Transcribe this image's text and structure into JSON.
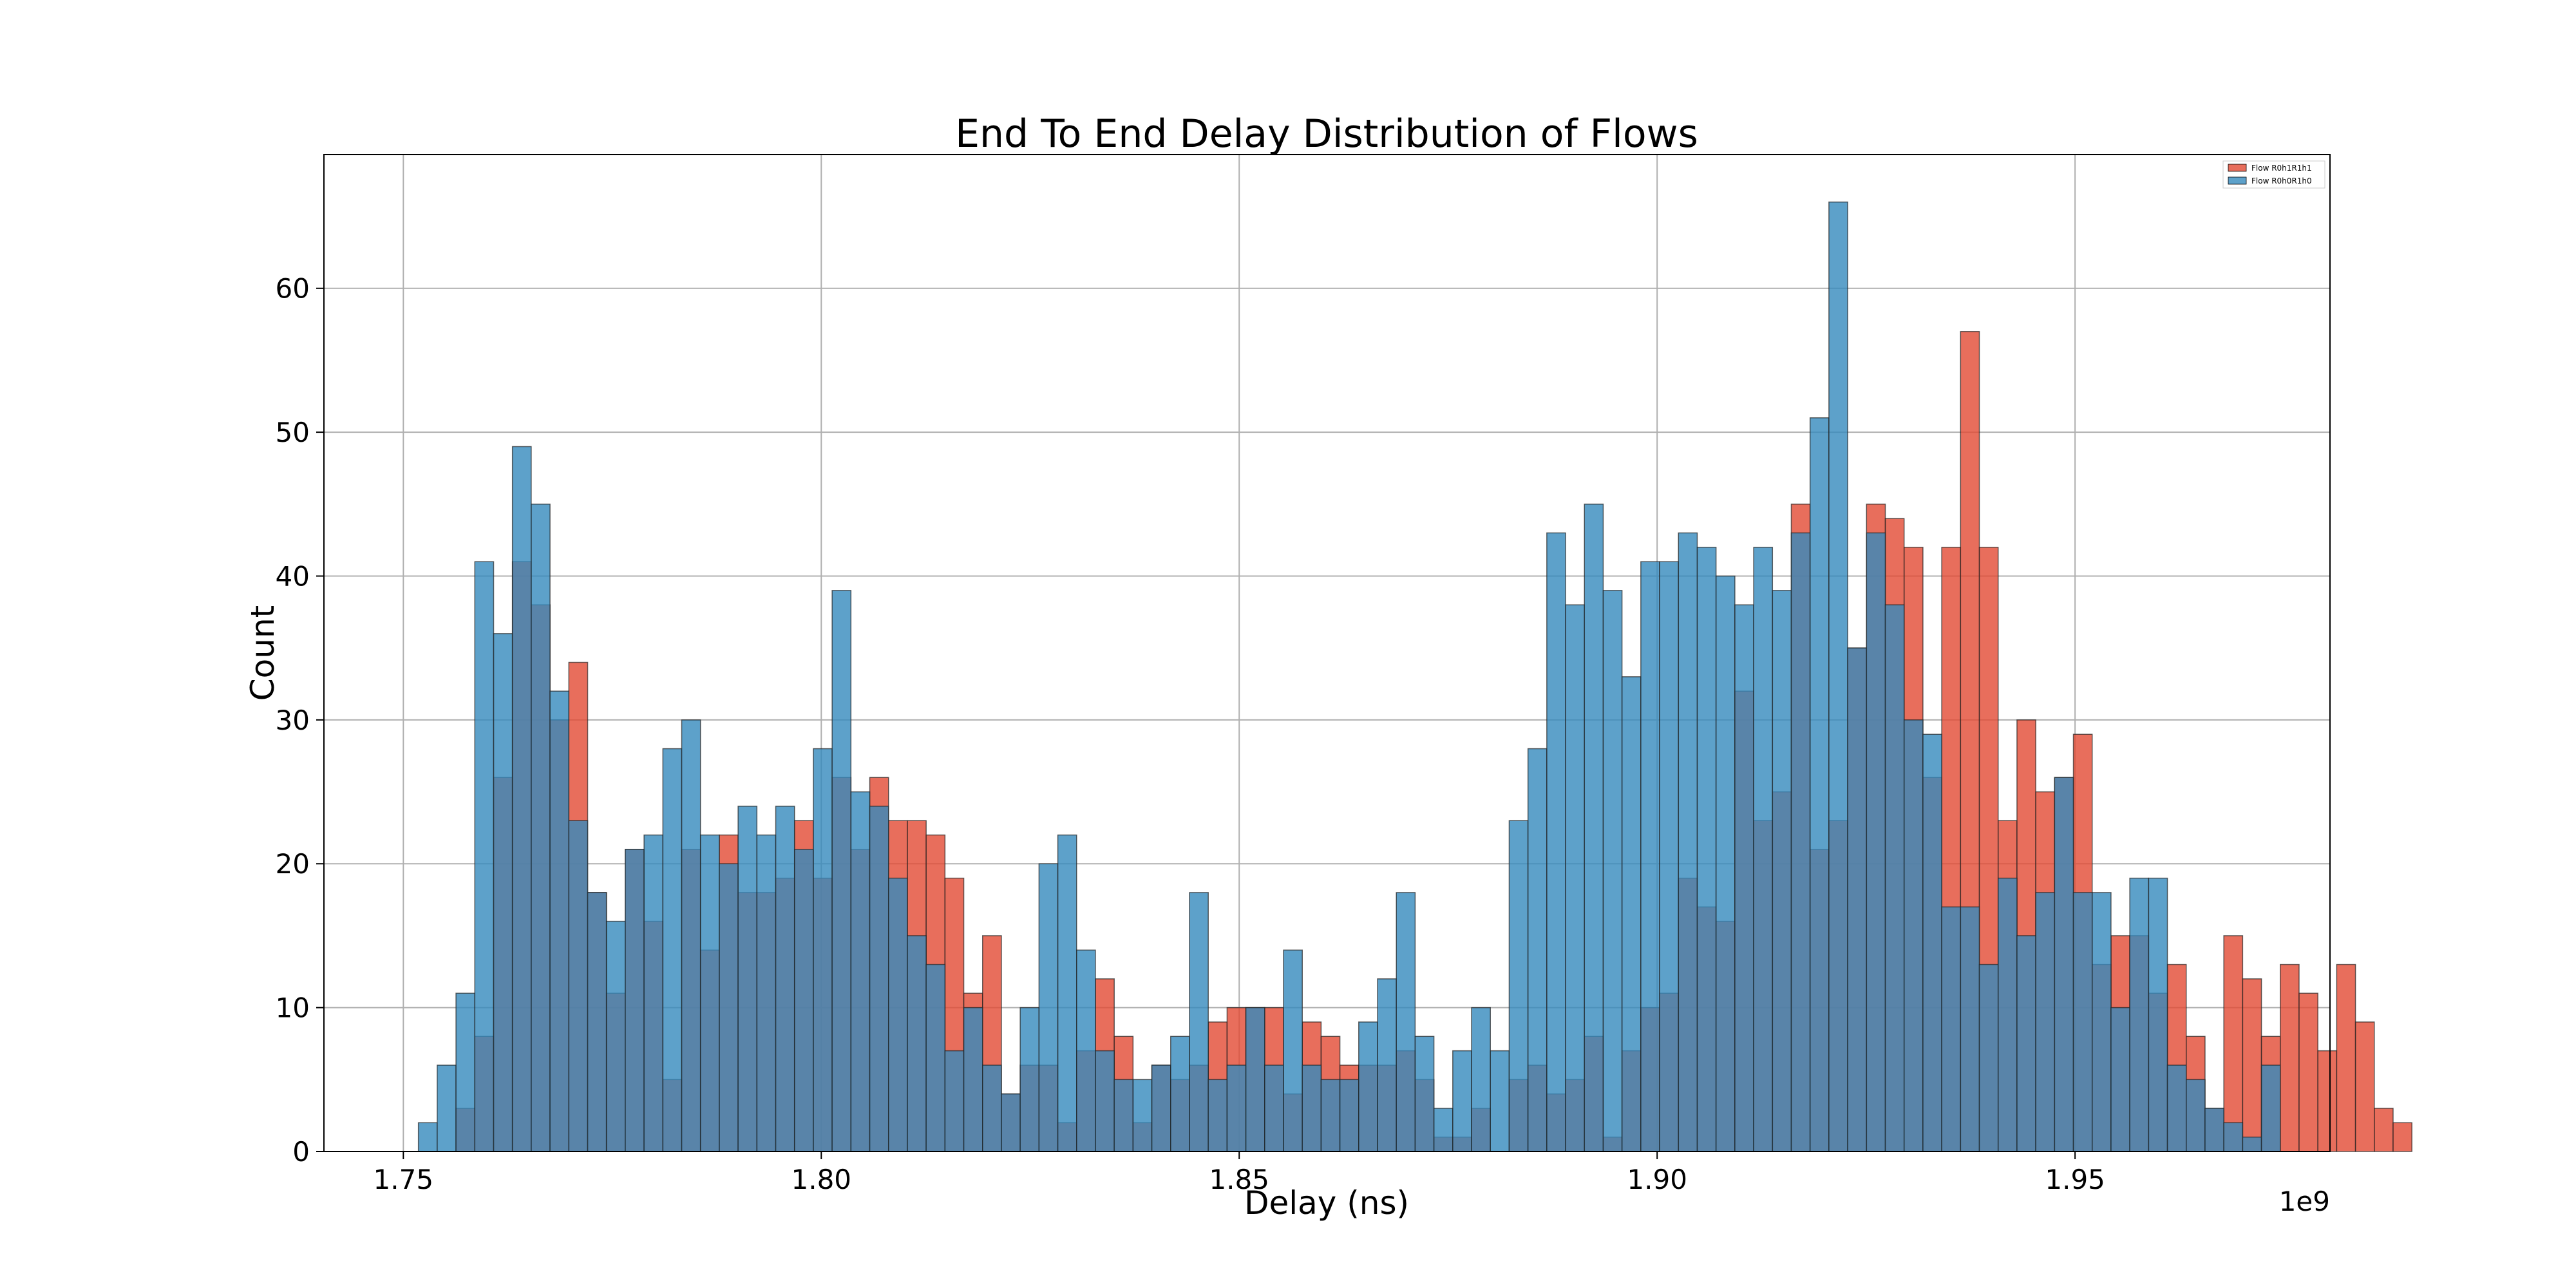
{
  "chart_data": {
    "type": "bar",
    "title": "End To End Delay Distribution of Flows",
    "xlabel": "Delay (ns)",
    "ylabel": "Count",
    "x_offset_label": "1e9",
    "xlim": [
      1.7405,
      1.9805
    ],
    "ylim": [
      0,
      69.3
    ],
    "x_ticks": [
      1.75,
      1.8,
      1.85,
      1.9,
      1.95
    ],
    "x_tick_labels": [
      "1.75",
      "1.80",
      "1.85",
      "1.90",
      "1.95"
    ],
    "y_ticks": [
      0,
      10,
      20,
      30,
      40,
      50,
      60
    ],
    "y_tick_labels": [
      "0",
      "10",
      "20",
      "30",
      "40",
      "50",
      "60"
    ],
    "grid": true,
    "legend_position": "top-right",
    "bin_start": 1.7518,
    "bin_width": 0.00225,
    "series": [
      {
        "name": "Flow R0h1R1h1",
        "color": "#e24a33",
        "values": [
          0,
          0,
          3,
          8,
          26,
          41,
          38,
          30,
          34,
          18,
          11,
          21,
          16,
          5,
          21,
          14,
          22,
          18,
          18,
          19,
          23,
          19,
          26,
          21,
          26,
          23,
          23,
          22,
          19,
          11,
          15,
          4,
          6,
          6,
          2,
          7,
          12,
          8,
          2,
          6,
          5,
          6,
          9,
          10,
          10,
          10,
          4,
          9,
          8,
          6,
          6,
          6,
          7,
          5,
          1,
          1,
          3,
          0,
          5,
          6,
          4,
          5,
          8,
          1,
          7,
          10,
          11,
          19,
          17,
          16,
          32,
          23,
          25,
          45,
          21,
          23,
          35,
          45,
          44,
          42,
          26,
          42,
          57,
          42,
          23,
          30,
          25,
          26,
          29,
          13,
          15,
          15,
          11,
          13,
          8,
          3,
          15,
          12,
          8,
          13,
          11,
          7,
          13,
          9,
          3,
          2,
          0,
          0,
          0,
          0
        ]
      },
      {
        "name": "Flow R0h0R1h0",
        "color": "#348abd",
        "values": [
          2,
          6,
          11,
          41,
          36,
          49,
          45,
          32,
          23,
          18,
          16,
          21,
          22,
          28,
          30,
          22,
          20,
          24,
          22,
          24,
          21,
          28,
          39,
          25,
          24,
          19,
          15,
          13,
          7,
          10,
          6,
          4,
          10,
          20,
          22,
          14,
          7,
          5,
          5,
          6,
          8,
          18,
          5,
          6,
          10,
          6,
          14,
          6,
          5,
          5,
          9,
          12,
          18,
          8,
          3,
          7,
          10,
          7,
          23,
          28,
          43,
          38,
          45,
          39,
          33,
          41,
          41,
          43,
          42,
          40,
          38,
          42,
          39,
          43,
          51,
          66,
          35,
          43,
          38,
          30,
          29,
          17,
          17,
          13,
          19,
          15,
          18,
          26,
          18,
          18,
          10,
          19,
          19,
          6,
          5,
          3,
          2,
          1,
          6
        ]
      }
    ]
  }
}
